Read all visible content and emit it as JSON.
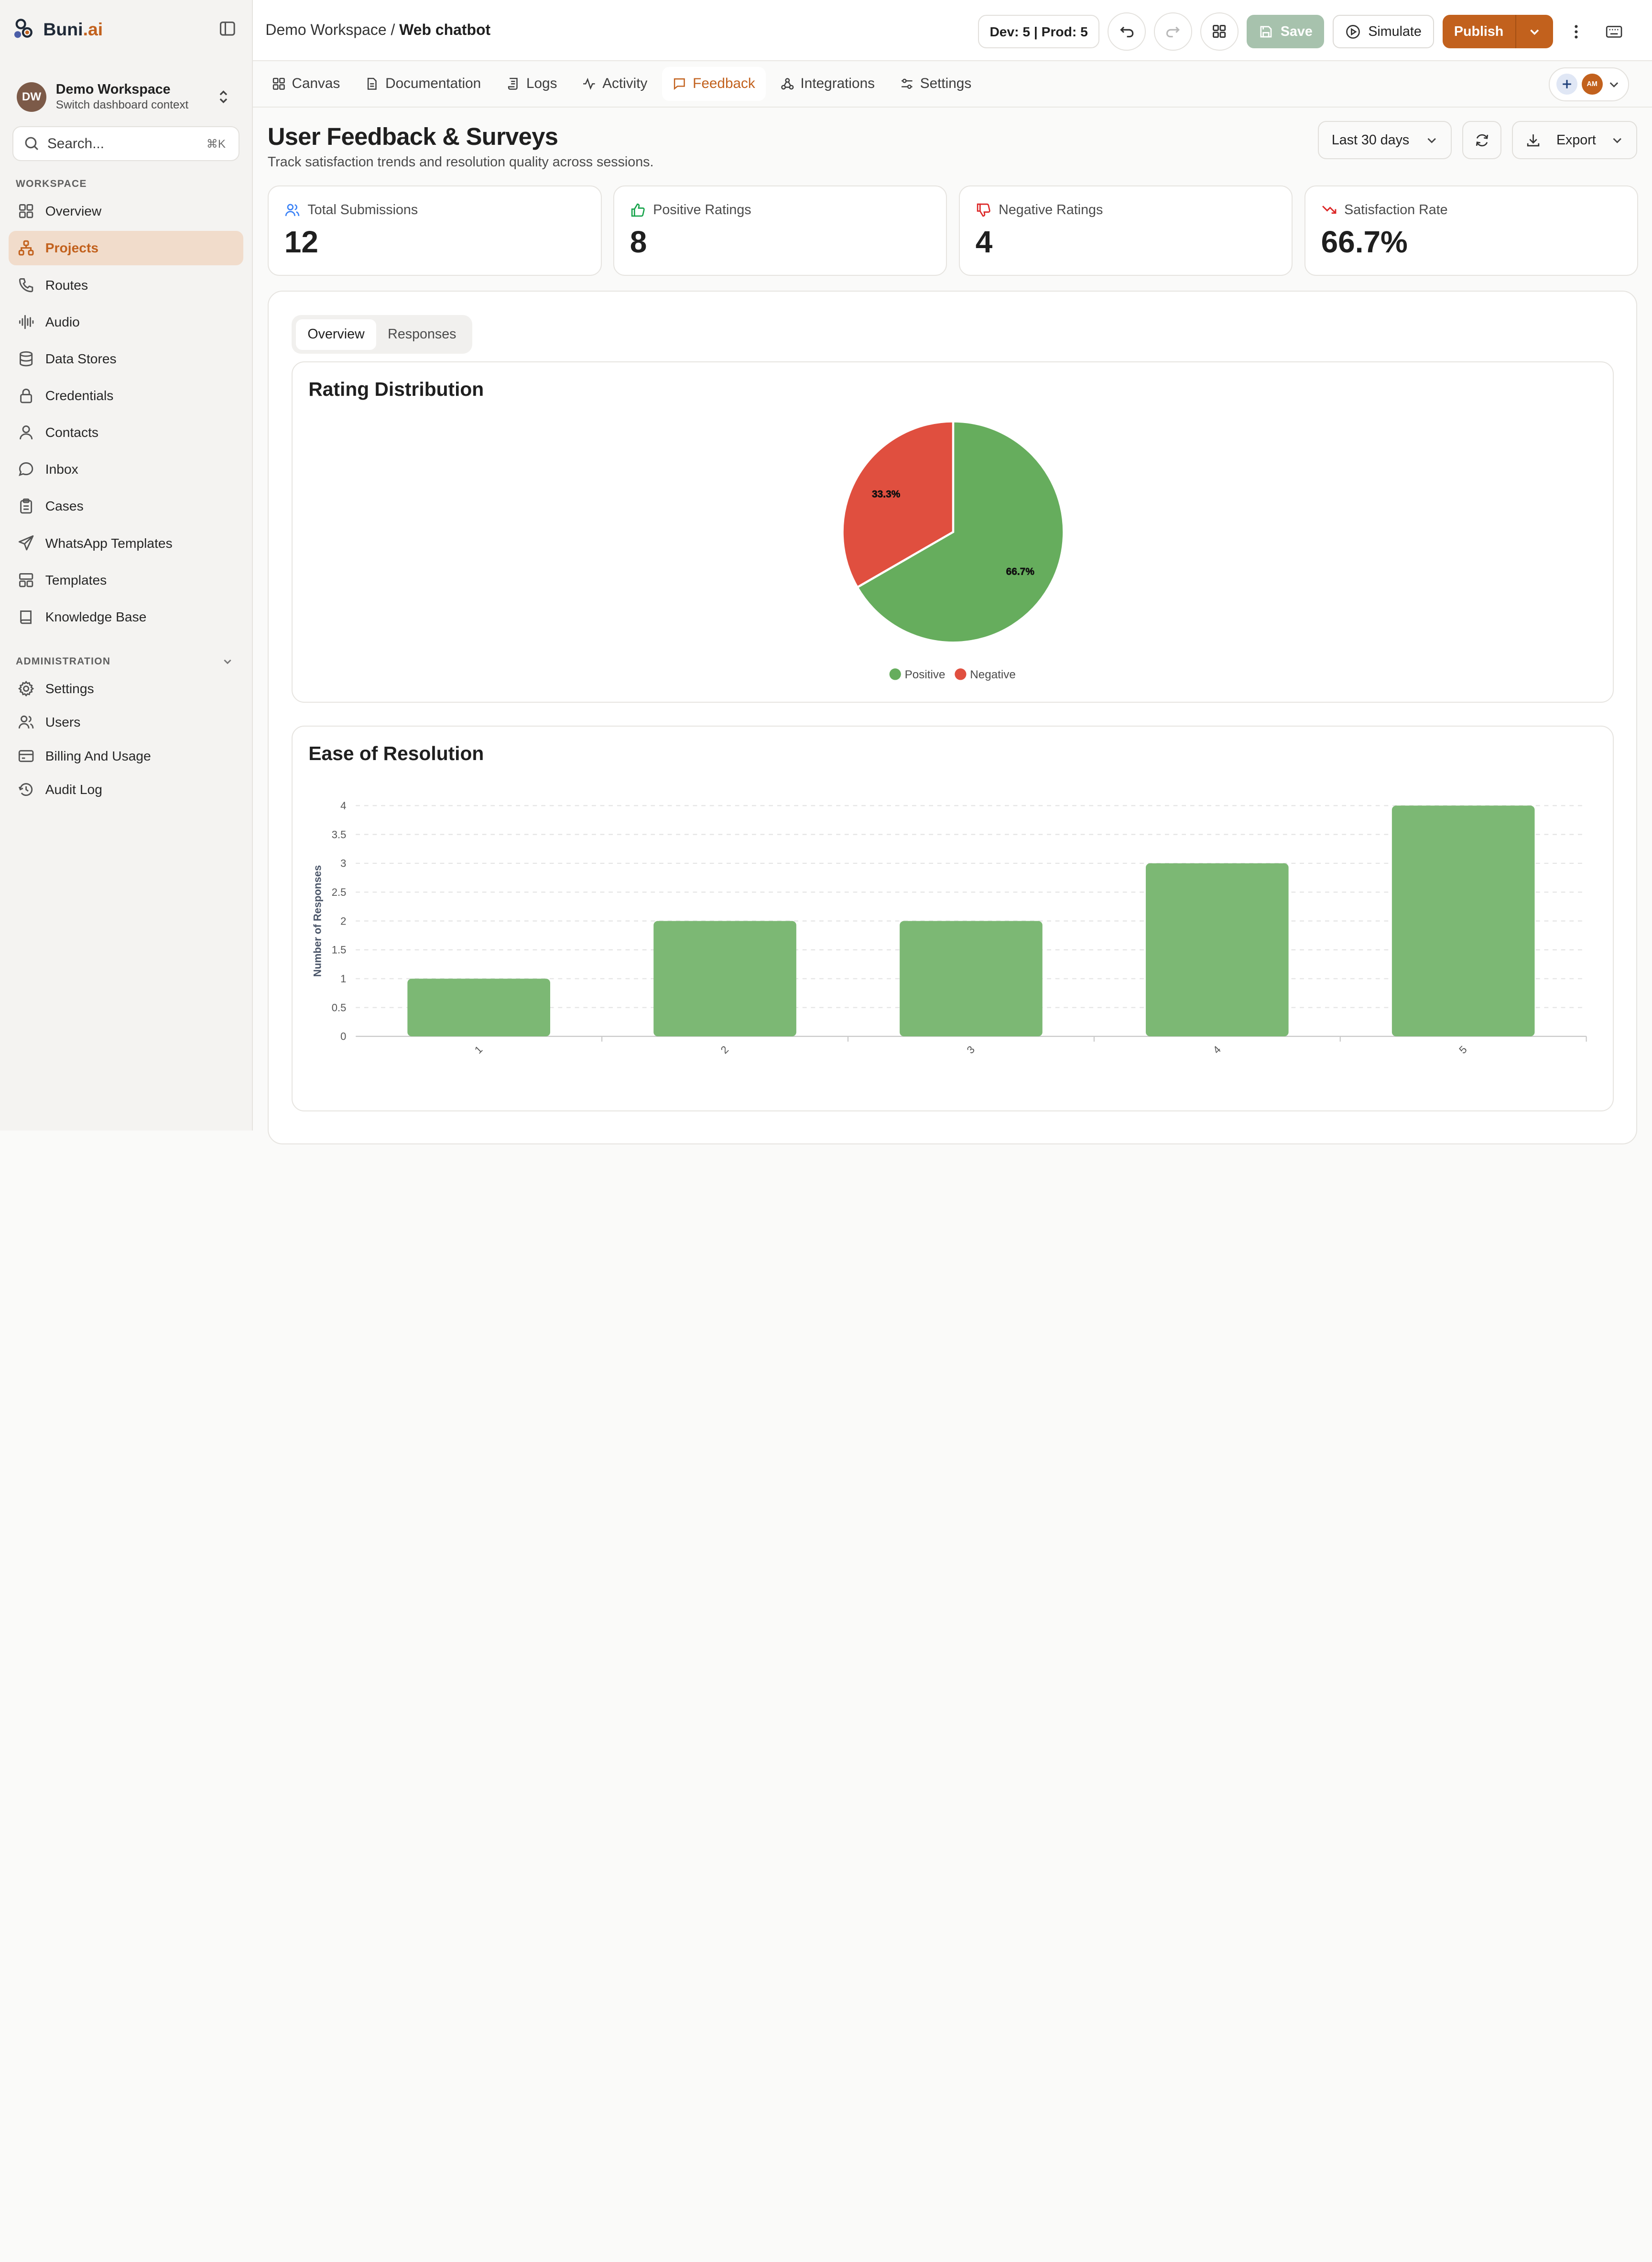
{
  "brand": {
    "name": "Buni",
    "suffix": ".ai"
  },
  "workspace": {
    "initials": "DW",
    "name": "Demo Workspace",
    "subtitle": "Switch dashboard context"
  },
  "search": {
    "placeholder": "Search...",
    "shortcut": "⌘K"
  },
  "sidebar": {
    "workspace_label": "WORKSPACE",
    "items": [
      {
        "label": "Overview",
        "icon": "grid-icon"
      },
      {
        "label": "Projects",
        "icon": "projects-icon",
        "active": true
      },
      {
        "label": "Routes",
        "icon": "phone-icon"
      },
      {
        "label": "Audio",
        "icon": "audio-wave-icon"
      },
      {
        "label": "Data Stores",
        "icon": "database-icon"
      },
      {
        "label": "Credentials",
        "icon": "lock-icon"
      },
      {
        "label": "Contacts",
        "icon": "user-icon"
      },
      {
        "label": "Inbox",
        "icon": "message-circle-icon"
      },
      {
        "label": "Cases",
        "icon": "clipboard-icon"
      },
      {
        "label": "WhatsApp Templates",
        "icon": "send-icon"
      },
      {
        "label": "Templates",
        "icon": "layout-icon"
      },
      {
        "label": "Knowledge Base",
        "icon": "book-icon"
      }
    ],
    "admin_label": "ADMINISTRATION",
    "admin_items": [
      {
        "label": "Settings",
        "icon": "gear-icon"
      },
      {
        "label": "Users",
        "icon": "users-icon"
      },
      {
        "label": "Billing And Usage",
        "icon": "wallet-icon"
      },
      {
        "label": "Audit Log",
        "icon": "history-icon"
      }
    ]
  },
  "topbar": {
    "breadcrumb_parent": "Demo Workspace",
    "breadcrumb_sep": "/",
    "breadcrumb_current": "Web chatbot",
    "env": "Dev: 5 | Prod: 5",
    "save": "Save",
    "simulate": "Simulate",
    "publish": "Publish"
  },
  "tabs": [
    {
      "label": "Canvas",
      "icon": "grid-icon"
    },
    {
      "label": "Documentation",
      "icon": "file-icon"
    },
    {
      "label": "Logs",
      "icon": "scroll-icon"
    },
    {
      "label": "Activity",
      "icon": "activity-icon"
    },
    {
      "label": "Feedback",
      "icon": "message-square-icon",
      "active": true
    },
    {
      "label": "Integrations",
      "icon": "webhook-icon"
    },
    {
      "label": "Settings",
      "icon": "sliders-icon"
    }
  ],
  "collab": {
    "avatar": "AM"
  },
  "page": {
    "title": "User Feedback & Surveys",
    "subtitle": "Track satisfaction trends and resolution quality across sessions.",
    "range": "Last 30 days",
    "export": "Export"
  },
  "stats": [
    {
      "label": "Total Submissions",
      "value": "12",
      "icon": "users-icon",
      "color": "#3b82f6"
    },
    {
      "label": "Positive Ratings",
      "value": "8",
      "icon": "thumbs-up-icon",
      "color": "#16a34a"
    },
    {
      "label": "Negative Ratings",
      "value": "4",
      "icon": "thumbs-down-icon",
      "color": "#dc2626"
    },
    {
      "label": "Satisfaction Rate",
      "value": "66.7%",
      "icon": "trending-down-icon",
      "color": "#dc2626"
    }
  ],
  "view_tabs": [
    {
      "label": "Overview",
      "active": true
    },
    {
      "label": "Responses"
    }
  ],
  "chart_data": [
    {
      "type": "pie",
      "title": "Rating Distribution",
      "series": [
        {
          "name": "Positive",
          "value": 8,
          "label": "66.7%",
          "color": "#66ad5d"
        },
        {
          "name": "Negative",
          "value": 4,
          "label": "33.3%",
          "color": "#e04f3f"
        }
      ],
      "legend": "bottom"
    },
    {
      "type": "bar",
      "title": "Ease of Resolution",
      "categories": [
        "1",
        "2",
        "3",
        "4",
        "5"
      ],
      "values": [
        1,
        2,
        2,
        3,
        4
      ],
      "ylabel": "Number of Responses",
      "ylim": [
        0,
        4
      ],
      "yticks": [
        "0",
        "0.5",
        "1",
        "1.5",
        "2",
        "2.5",
        "3",
        "3.5",
        "4"
      ],
      "grid": true,
      "color": "#7cb874"
    }
  ]
}
